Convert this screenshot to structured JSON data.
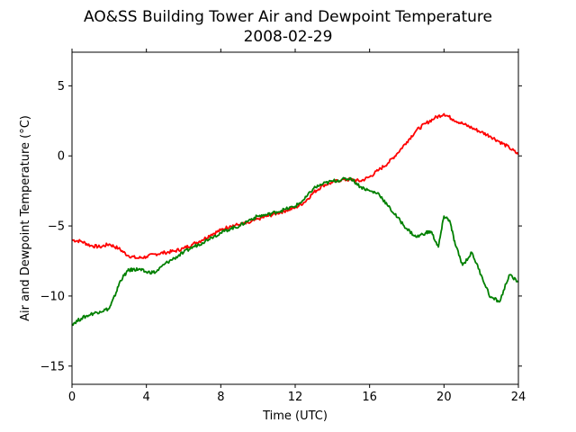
{
  "chart_data": {
    "type": "line",
    "title": "AO&SS Building Tower Air and Dewpoint Temperature",
    "subtitle": "2008-02-29",
    "xlabel": "Time (UTC)",
    "ylabel": "Air and Dewpoint Temperature (°C)",
    "xlim": [
      0,
      24
    ],
    "ylim": [
      -16.3,
      7.4
    ],
    "xticks": [
      0,
      4,
      8,
      12,
      16,
      20,
      24
    ],
    "yticks": [
      -15,
      -10,
      -5,
      0,
      5
    ],
    "grid": false,
    "legend": "none",
    "series": [
      {
        "color": "#ff0000",
        "x": [
          0,
          0.5,
          1,
          1.5,
          2,
          2.5,
          3,
          3.5,
          4,
          4.5,
          5,
          5.5,
          6,
          6.5,
          7,
          7.5,
          8,
          8.5,
          9,
          9.5,
          10,
          10.5,
          11,
          11.5,
          12,
          12.5,
          13,
          13.5,
          14,
          14.5,
          15,
          15.5,
          16,
          16.5,
          17,
          17.5,
          18,
          18.5,
          19,
          19.5,
          20,
          20.5,
          21,
          21.5,
          22,
          22.5,
          23,
          23.5,
          24
        ],
        "y": [
          -6.0,
          -6.1,
          -6.4,
          -6.5,
          -6.3,
          -6.6,
          -7.1,
          -7.3,
          -7.2,
          -7.0,
          -6.9,
          -6.8,
          -6.6,
          -6.3,
          -6.0,
          -5.6,
          -5.3,
          -5.0,
          -4.9,
          -4.8,
          -4.5,
          -4.3,
          -4.1,
          -3.9,
          -3.7,
          -3.3,
          -2.6,
          -2.1,
          -1.9,
          -1.7,
          -1.7,
          -1.8,
          -1.5,
          -1.0,
          -0.5,
          0.2,
          1.0,
          1.8,
          2.3,
          2.7,
          3.0,
          2.6,
          2.3,
          2.0,
          1.7,
          1.4,
          1.0,
          0.6,
          0.1
        ]
      },
      {
        "color": "#008000",
        "x": [
          0,
          0.5,
          1,
          1.5,
          2,
          2.3,
          2.6,
          3,
          3.3,
          3.6,
          4,
          4.5,
          5,
          5.5,
          6,
          6.5,
          7,
          7.5,
          8,
          8.5,
          9,
          9.5,
          10,
          10.5,
          11,
          11.5,
          12,
          12.5,
          13,
          13.5,
          14,
          14.5,
          15,
          15.5,
          16,
          16.5,
          17,
          17.5,
          18,
          18.5,
          19,
          19.3,
          19.7,
          20.0,
          20.3,
          20.6,
          21,
          21.5,
          22,
          22.5,
          23,
          23.5,
          24
        ],
        "y": [
          -12.0,
          -11.6,
          -11.3,
          -11.1,
          -10.9,
          -10.0,
          -8.9,
          -8.2,
          -8.1,
          -8.1,
          -8.3,
          -8.3,
          -7.7,
          -7.3,
          -6.9,
          -6.5,
          -6.2,
          -5.8,
          -5.5,
          -5.2,
          -5.0,
          -4.6,
          -4.3,
          -4.2,
          -4.0,
          -3.8,
          -3.6,
          -3.1,
          -2.3,
          -2.0,
          -1.8,
          -1.7,
          -1.6,
          -2.2,
          -2.5,
          -2.7,
          -3.6,
          -4.4,
          -5.2,
          -5.8,
          -5.5,
          -5.4,
          -6.5,
          -4.3,
          -4.6,
          -6.3,
          -7.8,
          -6.9,
          -8.5,
          -10.1,
          -10.4,
          -8.5,
          -9.0
        ]
      }
    ]
  }
}
